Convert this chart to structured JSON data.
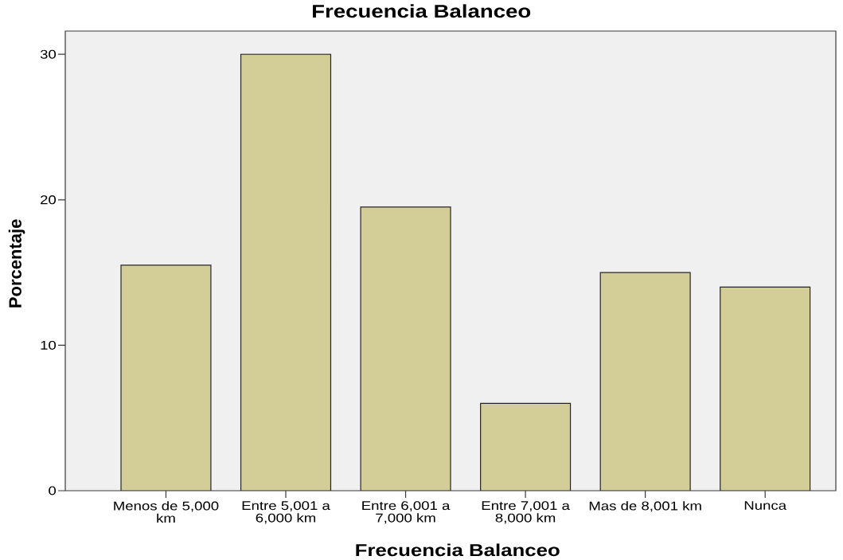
{
  "chart_data": {
    "type": "bar",
    "title": "Frecuencia Balanceo",
    "xlabel": "Frecuencia Balanceo",
    "ylabel": "Porcentaje",
    "categories": [
      "Menos de 5,000 km",
      "Entre 5,001 a 6,000 km",
      "Entre 6,001 a 7,000 km",
      "Entre 7,001 a 8,000 km",
      "Mas de 8,001 km",
      "Nunca"
    ],
    "values": [
      15.5,
      30,
      19.5,
      6,
      15,
      14
    ],
    "color": "#d3cd98",
    "ylim": [
      0,
      31.6
    ],
    "yticks": [
      0,
      10,
      20,
      30
    ]
  }
}
